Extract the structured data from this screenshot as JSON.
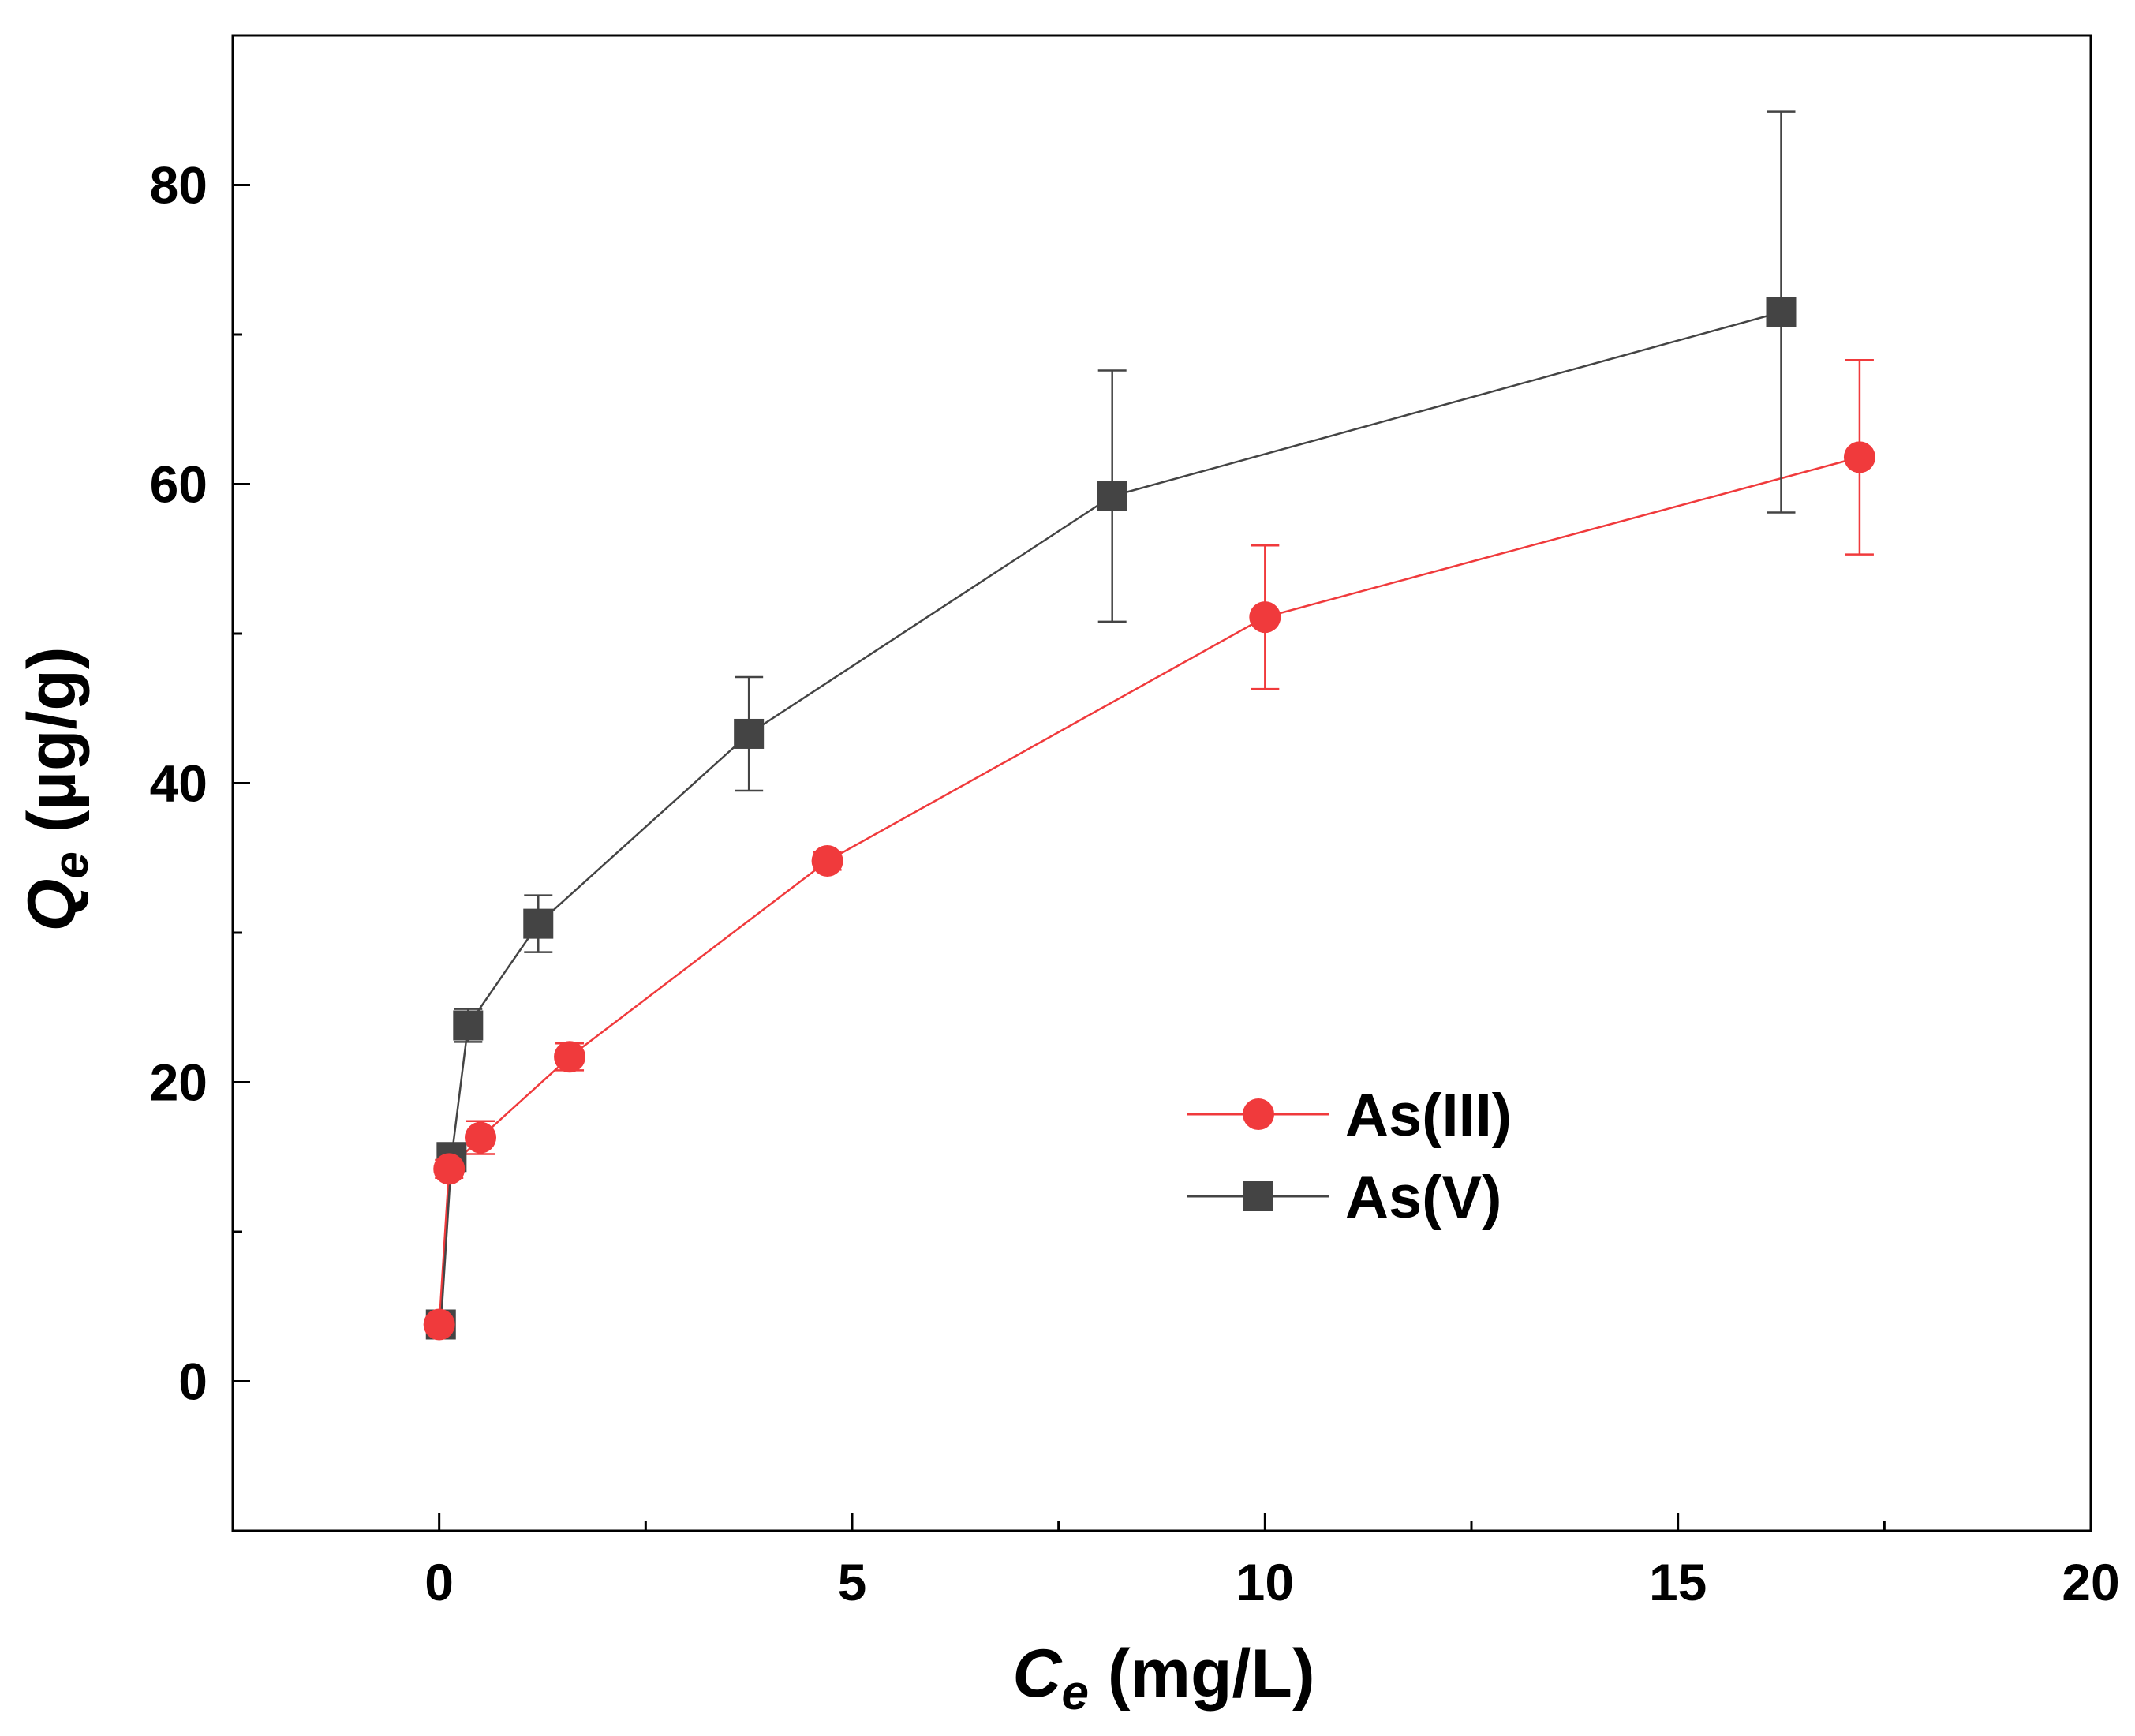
{
  "chart_data": {
    "type": "line",
    "title": "",
    "xlabel": "C",
    "xlabel_sub": "e",
    "xlabel_unit": " (mg/L)",
    "ylabel": "Q",
    "ylabel_sub": "e",
    "ylabel_unit": " (µg/g)",
    "xlim": [
      -2.5,
      20
    ],
    "ylim": [
      -10,
      90
    ],
    "xticks": [
      0,
      5,
      10,
      15,
      20
    ],
    "yticks": [
      0,
      20,
      40,
      60,
      80
    ],
    "xminor": [
      2.5,
      7.5,
      12.5,
      17.5
    ],
    "yminor": [
      10,
      30,
      50,
      70
    ],
    "grid": false,
    "legend_position": "center-right",
    "series": [
      {
        "name": "As(III)",
        "color": "#f03a3c",
        "marker": "circle",
        "x": [
          0.0,
          0.12,
          0.5,
          1.58,
          4.7,
          10.0,
          17.2
        ],
        "y": [
          3.8,
          14.2,
          16.3,
          21.7,
          34.8,
          51.1,
          61.8
        ],
        "err": [
          0.3,
          0.6,
          1.1,
          0.9,
          0.6,
          4.8,
          6.5
        ]
      },
      {
        "name": "As(V)",
        "color": "#444444",
        "marker": "square",
        "x": [
          0.02,
          0.15,
          0.35,
          1.2,
          3.75,
          8.15,
          16.25
        ],
        "y": [
          3.8,
          15.0,
          23.8,
          30.6,
          43.3,
          59.2,
          71.5
        ],
        "err": [
          0.3,
          0.4,
          1.1,
          1.9,
          3.8,
          8.4,
          13.4
        ]
      }
    ]
  }
}
